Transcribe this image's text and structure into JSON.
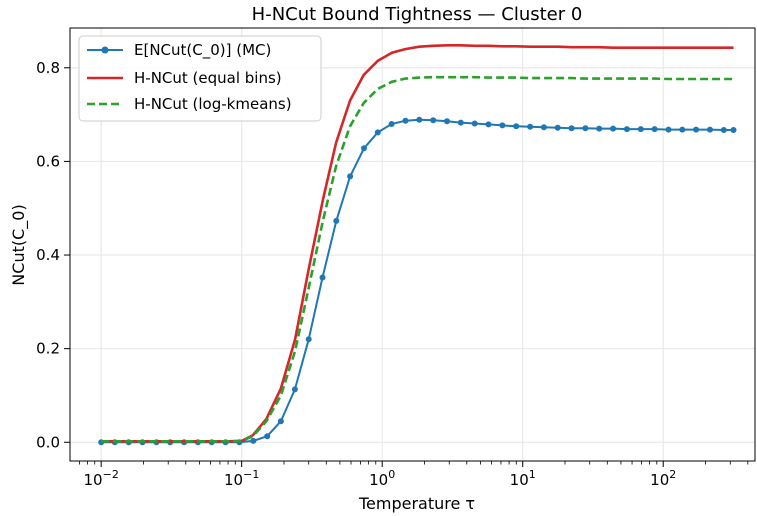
{
  "chart_data": {
    "type": "line",
    "title": "H-NCut Bound Tightness — Cluster 0",
    "xlabel": "Temperature τ",
    "ylabel": "NCut(C_0)",
    "xscale": "log",
    "xlim": [
      0.006,
      450
    ],
    "ylim": [
      -0.04,
      0.885
    ],
    "xticks": [
      {
        "value": 0.01,
        "base": "10",
        "exp": "−2"
      },
      {
        "value": 0.1,
        "base": "10",
        "exp": "−1"
      },
      {
        "value": 1,
        "base": "10",
        "exp": "0"
      },
      {
        "value": 10,
        "base": "10",
        "exp": "1"
      },
      {
        "value": 100,
        "base": "10",
        "exp": "2"
      }
    ],
    "yticks": [
      {
        "value": 0.0,
        "label": "0.0"
      },
      {
        "value": 0.2,
        "label": "0.2"
      },
      {
        "value": 0.4,
        "label": "0.4"
      },
      {
        "value": 0.6,
        "label": "0.6"
      },
      {
        "value": 0.8,
        "label": "0.8"
      }
    ],
    "grid": true,
    "legend_position": "top-left",
    "series": [
      {
        "name": "E[NCut(C_0)] (MC)",
        "color": "#1f77b4",
        "style": "solid",
        "markers": true,
        "x": [
          0.01,
          0.0125,
          0.0157,
          0.0197,
          0.0247,
          0.031,
          0.0389,
          0.0488,
          0.0612,
          0.0768,
          0.0963,
          0.121,
          0.152,
          0.19,
          0.239,
          0.3,
          0.376,
          0.471,
          0.591,
          0.742,
          0.93,
          1.167,
          1.464,
          1.837,
          2.305,
          2.892,
          3.628,
          4.551,
          5.71,
          7.164,
          8.988,
          11.28,
          14.15,
          17.75,
          22.27,
          27.94,
          35.05,
          43.98,
          55.18,
          69.23,
          86.85,
          109.0,
          136.7,
          171.5,
          215.2,
          270.0,
          316.2
        ],
        "y": [
          0.0,
          0.0,
          0.0,
          0.0,
          0.0,
          0.0,
          0.0,
          0.0,
          0.0,
          0.0,
          0.0,
          0.003,
          0.013,
          0.045,
          0.113,
          0.22,
          0.352,
          0.473,
          0.568,
          0.628,
          0.662,
          0.68,
          0.687,
          0.689,
          0.688,
          0.686,
          0.683,
          0.681,
          0.679,
          0.677,
          0.675,
          0.674,
          0.673,
          0.672,
          0.671,
          0.671,
          0.67,
          0.67,
          0.669,
          0.669,
          0.669,
          0.668,
          0.668,
          0.668,
          0.668,
          0.667,
          0.667
        ]
      },
      {
        "name": "H-NCut (equal bins)",
        "color": "#d62728",
        "style": "solid",
        "markers": false,
        "x": [
          0.01,
          0.02,
          0.04,
          0.06,
          0.08,
          0.1,
          0.12,
          0.15,
          0.19,
          0.24,
          0.3,
          0.38,
          0.47,
          0.59,
          0.74,
          0.93,
          1.17,
          1.46,
          1.84,
          2.3,
          2.9,
          3.6,
          4.6,
          5.7,
          7.2,
          9.0,
          11.3,
          14.2,
          17.8,
          22.3,
          28.0,
          35.0,
          44.0,
          55.0,
          70.0,
          87.0,
          110.0,
          140.0,
          170.0,
          220.0,
          270.0,
          316.2
        ],
        "y": [
          0.002,
          0.002,
          0.002,
          0.002,
          0.002,
          0.003,
          0.015,
          0.05,
          0.115,
          0.22,
          0.37,
          0.52,
          0.64,
          0.73,
          0.785,
          0.815,
          0.832,
          0.84,
          0.845,
          0.847,
          0.848,
          0.848,
          0.847,
          0.847,
          0.846,
          0.846,
          0.845,
          0.845,
          0.845,
          0.844,
          0.844,
          0.844,
          0.843,
          0.843,
          0.843,
          0.843,
          0.843,
          0.843,
          0.843,
          0.843,
          0.843,
          0.843
        ]
      },
      {
        "name": "H-NCut (log-kmeans)",
        "color": "#2ca02c",
        "style": "dashed",
        "markers": false,
        "x": [
          0.01,
          0.02,
          0.04,
          0.06,
          0.08,
          0.1,
          0.12,
          0.15,
          0.19,
          0.24,
          0.3,
          0.38,
          0.47,
          0.59,
          0.74,
          0.93,
          1.17,
          1.46,
          1.84,
          2.3,
          2.9,
          3.6,
          4.6,
          5.7,
          7.2,
          9.0,
          11.3,
          14.2,
          17.8,
          22.3,
          28.0,
          35.0,
          44.0,
          55.0,
          70.0,
          87.0,
          110.0,
          140.0,
          170.0,
          220.0,
          270.0,
          316.2
        ],
        "y": [
          0.002,
          0.002,
          0.002,
          0.002,
          0.002,
          0.003,
          0.013,
          0.045,
          0.1,
          0.195,
          0.33,
          0.475,
          0.59,
          0.675,
          0.725,
          0.755,
          0.77,
          0.777,
          0.779,
          0.78,
          0.78,
          0.78,
          0.78,
          0.779,
          0.779,
          0.779,
          0.778,
          0.778,
          0.778,
          0.778,
          0.777,
          0.777,
          0.777,
          0.777,
          0.777,
          0.777,
          0.776,
          0.776,
          0.776,
          0.776,
          0.776,
          0.776
        ]
      }
    ]
  }
}
